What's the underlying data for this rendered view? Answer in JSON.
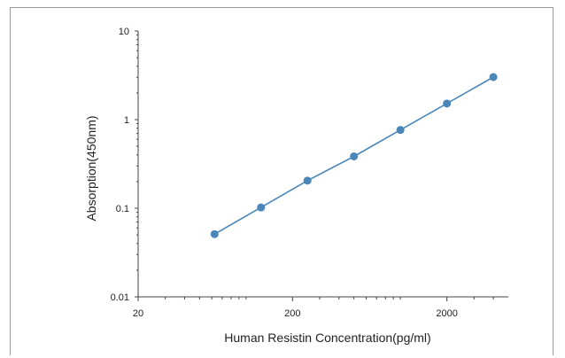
{
  "colors": {
    "series": "#4a86b8",
    "axis": "#444444",
    "frame": "#9a9a9a"
  },
  "chart_data": {
    "type": "scatter",
    "xscale": "log",
    "yscale": "log",
    "xlabel": "Human Resistin Concentration(pg/ml)",
    "ylabel": "Absorption(450nm)",
    "xlim": [
      20,
      5000
    ],
    "ylim": [
      0.01,
      10
    ],
    "x_ticks": [
      {
        "value": 20,
        "label": "20"
      },
      {
        "value": 200,
        "label": "200"
      },
      {
        "value": 2000,
        "label": "2000"
      }
    ],
    "y_ticks": [
      {
        "value": 0.01,
        "label": "0.01"
      },
      {
        "value": 0.1,
        "label": "0.1"
      },
      {
        "value": 1,
        "label": "1"
      },
      {
        "value": 10,
        "label": "10"
      }
    ],
    "grid": false,
    "legend": "none",
    "series": [
      {
        "x": [
          62.5,
          125,
          250,
          500,
          1000,
          2000,
          4000
        ],
        "y": [
          0.051,
          0.102,
          0.205,
          0.385,
          0.765,
          1.52,
          3.02
        ]
      }
    ]
  }
}
